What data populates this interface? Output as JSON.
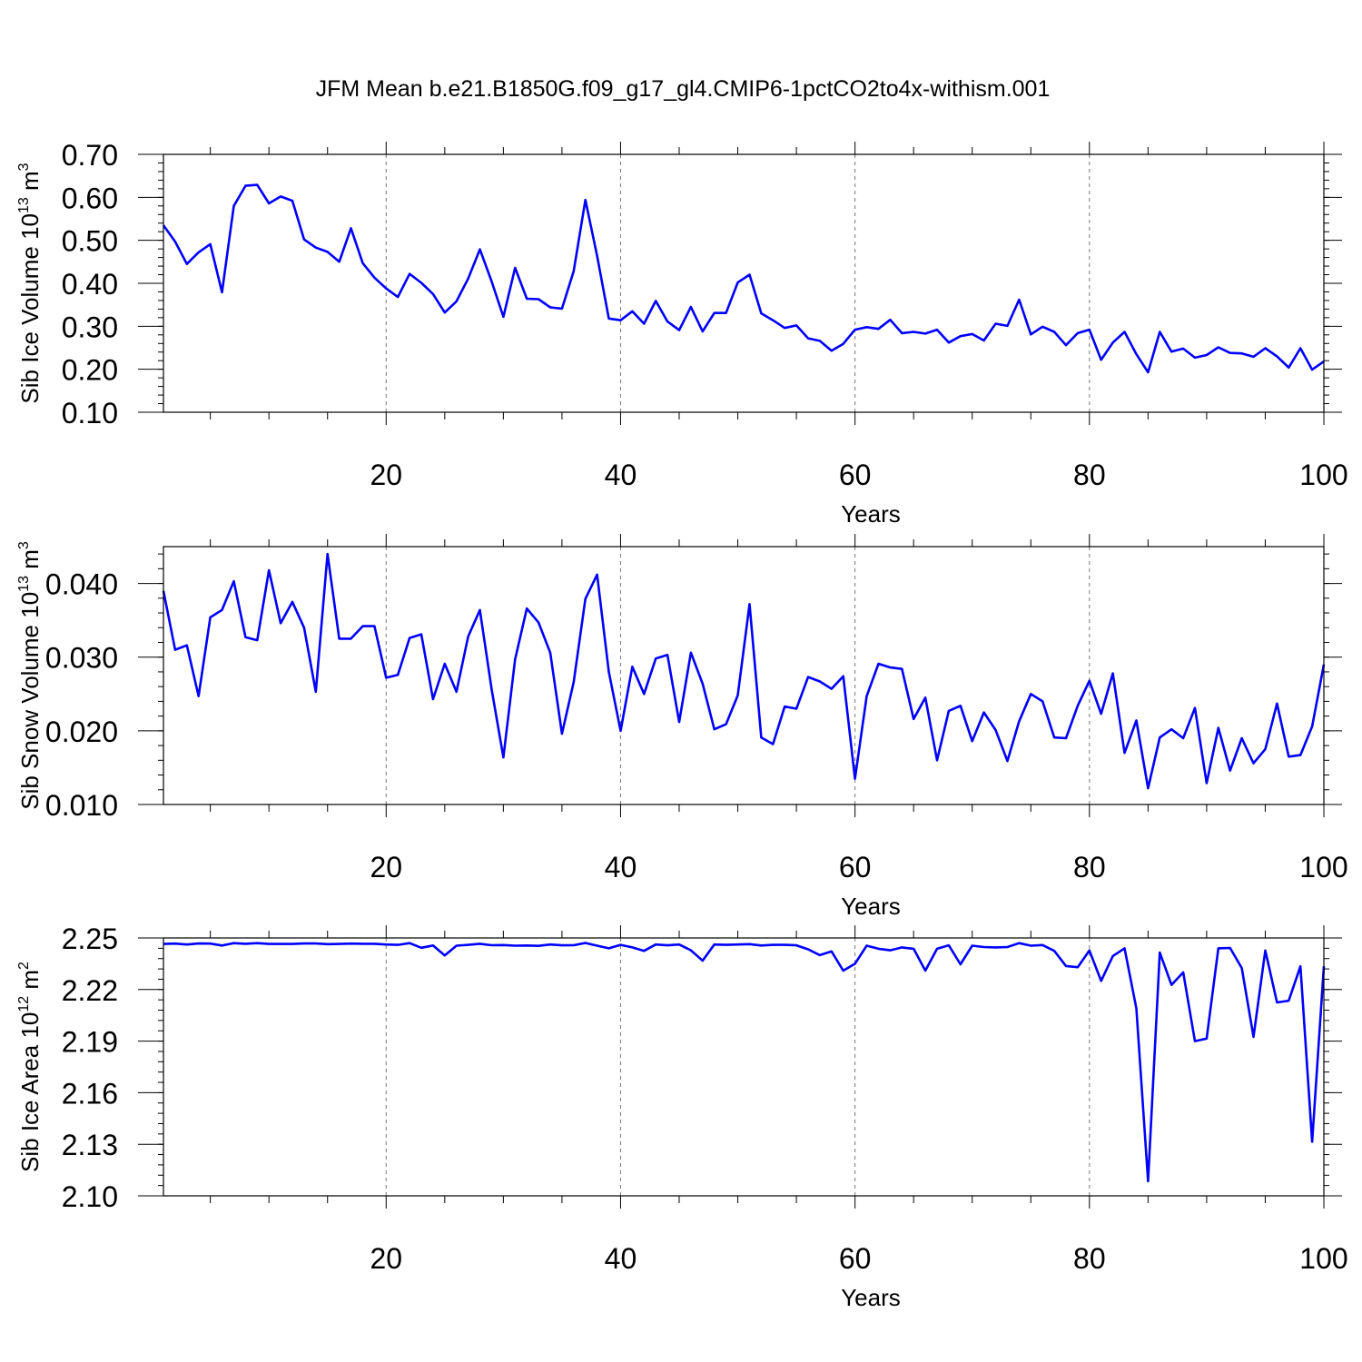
{
  "title": "JFM Mean b.e21.B1850G.f09_g17_gl4.CMIP6-1pctCO2to4x-withism.001",
  "chart_data": [
    {
      "type": "line",
      "title": "JFM Mean b.e21.B1850G.f09_g17_gl4.CMIP6-1pctCO2to4x-withism.001",
      "xlabel": "Years",
      "ylabel": "Sib Ice Volume 10",
      "ylabel_exp": "13",
      "ylabel_unit": " m",
      "ylabel_unit_exp": "3",
      "xlim": [
        1,
        100
      ],
      "ylim": [
        0.1,
        0.7
      ],
      "x_ticks": [
        20,
        40,
        60,
        80,
        100
      ],
      "y_ticks": [
        0.1,
        0.2,
        0.3,
        0.4,
        0.5,
        0.6,
        0.7
      ],
      "y_tick_labels": [
        "0.10",
        "0.20",
        "0.30",
        "0.40",
        "0.50",
        "0.60",
        "0.70"
      ],
      "grid": "vertical dashed at major x ticks",
      "line_color": "#0000ff",
      "x_start": 1,
      "values": [
        0.535,
        0.497,
        0.445,
        0.472,
        0.491,
        0.379,
        0.58,
        0.627,
        0.629,
        0.586,
        0.602,
        0.592,
        0.502,
        0.483,
        0.473,
        0.45,
        0.528,
        0.447,
        0.413,
        0.388,
        0.368,
        0.422,
        0.401,
        0.375,
        0.332,
        0.358,
        0.411,
        0.479,
        0.404,
        0.322,
        0.436,
        0.364,
        0.363,
        0.344,
        0.341,
        0.428,
        0.594,
        0.464,
        0.318,
        0.314,
        0.335,
        0.306,
        0.359,
        0.311,
        0.291,
        0.345,
        0.288,
        0.331,
        0.331,
        0.402,
        0.42,
        0.33,
        0.314,
        0.296,
        0.302,
        0.272,
        0.266,
        0.243,
        0.259,
        0.292,
        0.298,
        0.294,
        0.315,
        0.284,
        0.287,
        0.283,
        0.292,
        0.262,
        0.277,
        0.282,
        0.267,
        0.306,
        0.301,
        0.362,
        0.281,
        0.299,
        0.287,
        0.256,
        0.284,
        0.292,
        0.222,
        0.262,
        0.287,
        0.235,
        0.193,
        0.287,
        0.241,
        0.248,
        0.227,
        0.233,
        0.251,
        0.238,
        0.237,
        0.229,
        0.249,
        0.23,
        0.204,
        0.249,
        0.199,
        0.218
      ]
    },
    {
      "type": "line",
      "xlabel": "Years",
      "ylabel": "Sib Snow Volume 10",
      "ylabel_exp": "13",
      "ylabel_unit": " m",
      "ylabel_unit_exp": "3",
      "xlim": [
        1,
        100
      ],
      "ylim": [
        0.01,
        0.045
      ],
      "x_ticks": [
        20,
        40,
        60,
        80,
        100
      ],
      "y_ticks": [
        0.01,
        0.02,
        0.03,
        0.04
      ],
      "y_tick_labels": [
        "0.010",
        "0.020",
        "0.030",
        "0.040"
      ],
      "grid": "vertical dashed at major x ticks",
      "line_color": "#0000ff",
      "x_start": 1,
      "values": [
        0.039,
        0.031,
        0.0316,
        0.0247,
        0.0354,
        0.0364,
        0.0403,
        0.0327,
        0.0323,
        0.0418,
        0.0346,
        0.0375,
        0.034,
        0.0253,
        0.044,
        0.0325,
        0.0325,
        0.0342,
        0.0342,
        0.0272,
        0.0276,
        0.0326,
        0.0331,
        0.0243,
        0.0291,
        0.0253,
        0.0328,
        0.0364,
        0.0256,
        0.0164,
        0.0297,
        0.0366,
        0.0347,
        0.0306,
        0.0196,
        0.0266,
        0.0379,
        0.0412,
        0.028,
        0.02,
        0.0287,
        0.025,
        0.0298,
        0.0303,
        0.0212,
        0.0306,
        0.0264,
        0.0202,
        0.0209,
        0.0248,
        0.0372,
        0.0191,
        0.0182,
        0.0233,
        0.023,
        0.0273,
        0.0267,
        0.0257,
        0.0274,
        0.0135,
        0.0247,
        0.0291,
        0.0286,
        0.0284,
        0.0216,
        0.0245,
        0.016,
        0.0227,
        0.0234,
        0.0186,
        0.0225,
        0.0201,
        0.0159,
        0.0213,
        0.025,
        0.024,
        0.0191,
        0.019,
        0.0234,
        0.0268,
        0.0223,
        0.0278,
        0.017,
        0.0214,
        0.0122,
        0.0191,
        0.0202,
        0.019,
        0.0231,
        0.0129,
        0.0204,
        0.0146,
        0.019,
        0.0156,
        0.0175,
        0.0237,
        0.0165,
        0.0167,
        0.0206,
        0.029
      ]
    },
    {
      "type": "line",
      "xlabel": "Years",
      "ylabel": "Sib Ice Area 10",
      "ylabel_exp": "12",
      "ylabel_unit": " m",
      "ylabel_unit_exp": "2",
      "xlim": [
        1,
        100
      ],
      "ylim": [
        2.1,
        2.25
      ],
      "x_ticks": [
        20,
        40,
        60,
        80,
        100
      ],
      "y_ticks": [
        2.1,
        2.13,
        2.16,
        2.19,
        2.22,
        2.25
      ],
      "y_tick_labels": [
        "2.10",
        "2.13",
        "2.16",
        "2.19",
        "2.22",
        "2.25"
      ],
      "grid": "vertical dashed at major x ticks",
      "line_color": "#0000ff",
      "x_start": 1,
      "values": [
        2.2465,
        2.2467,
        2.2462,
        2.2468,
        2.2467,
        2.2456,
        2.247,
        2.2466,
        2.247,
        2.2465,
        2.2465,
        2.2465,
        2.2468,
        2.2468,
        2.2464,
        2.2465,
        2.2467,
        2.2466,
        2.2466,
        2.2462,
        2.246,
        2.247,
        2.2443,
        2.2456,
        2.2398,
        2.2455,
        2.246,
        2.2466,
        2.2458,
        2.2459,
        2.2455,
        2.2456,
        2.2454,
        2.2462,
        2.2457,
        2.2458,
        2.2471,
        2.2455,
        2.244,
        2.246,
        2.2445,
        2.2425,
        2.2462,
        2.2457,
        2.2462,
        2.2428,
        2.2368,
        2.2462,
        2.246,
        2.2462,
        2.2464,
        2.2456,
        2.246,
        2.246,
        2.2457,
        2.2434,
        2.24,
        2.2422,
        2.231,
        2.235,
        2.2455,
        2.2437,
        2.2428,
        2.2445,
        2.2437,
        2.231,
        2.2437,
        2.2457,
        2.2347,
        2.2455,
        2.2447,
        2.2445,
        2.2447,
        2.247,
        2.2455,
        2.2459,
        2.2425,
        2.2337,
        2.233,
        2.2427,
        2.225,
        2.2395,
        2.244,
        2.209,
        2.1085,
        2.2415,
        2.2227,
        2.23,
        2.19,
        2.1915,
        2.244,
        2.2442,
        2.2325,
        2.1925,
        2.2427,
        2.2125,
        2.2135,
        2.2335,
        2.1315,
        2.2335
      ]
    }
  ]
}
